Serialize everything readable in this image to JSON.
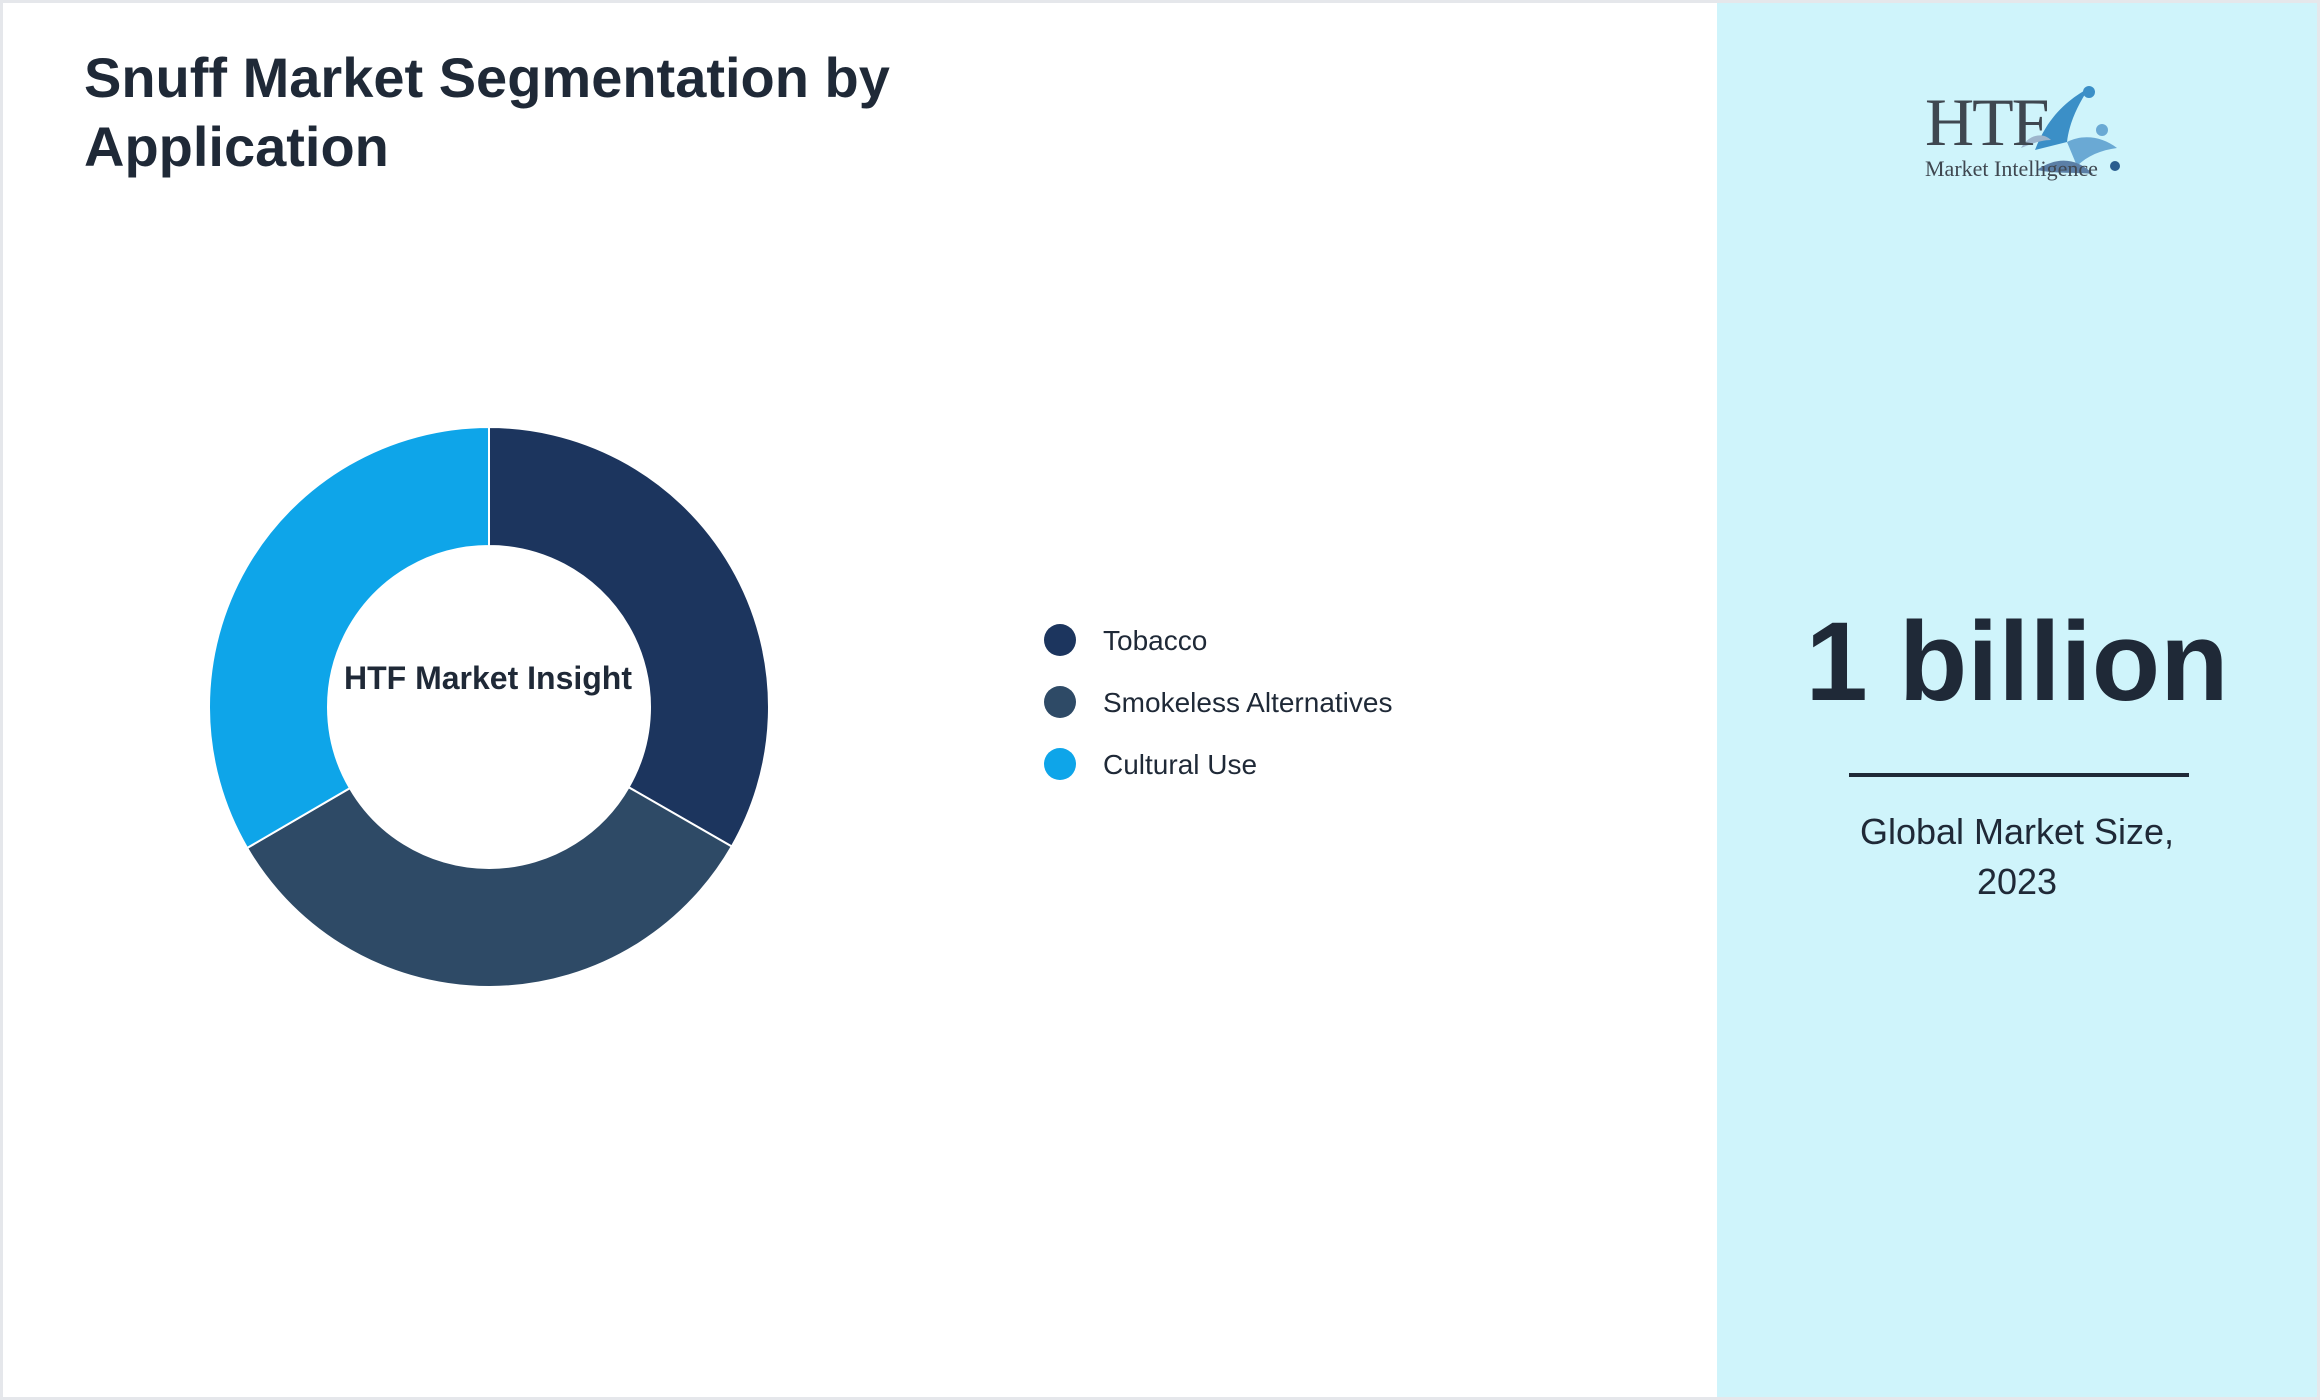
{
  "title": "Snuff Market Segmentation by Application",
  "chart_data": {
    "type": "pie",
    "style": "donut",
    "title": "Snuff Market Segmentation by Application",
    "center_label": "HTF Market Insight",
    "categories": [
      "Tobacco",
      "Smokeless Alternatives",
      "Cultural Use"
    ],
    "values": [
      33.3,
      33.3,
      33.4
    ],
    "colors": [
      "#1c355e",
      "#2e4a66",
      "#0ea5e9"
    ],
    "legend_position": "right"
  },
  "logo": {
    "text": "HTF",
    "subtitle": "Market Intelligence"
  },
  "metric": {
    "value": "1 billion",
    "caption_line1": "Global Market Size,",
    "caption_line2": "2023"
  },
  "colors": {
    "accent_panel": "#cff4fb",
    "text_dark": "#1f2937",
    "divider": "#ffffff"
  }
}
